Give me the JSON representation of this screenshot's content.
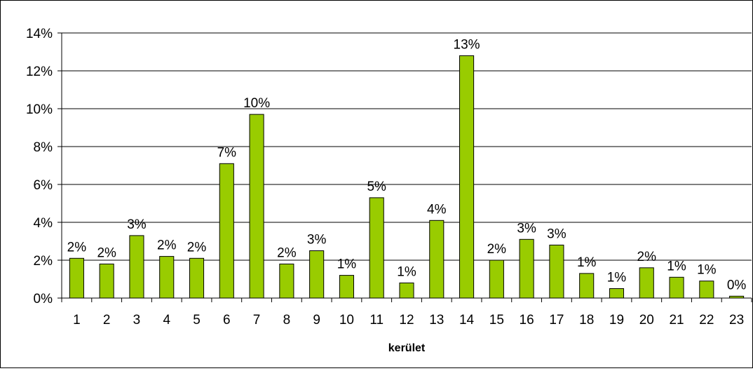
{
  "chart_data": {
    "type": "bar",
    "title": "",
    "xlabel": "kerület",
    "ylabel": "",
    "ylim": [
      0,
      14
    ],
    "y_tick_step": 2,
    "y_tick_format": "percent",
    "grid": "horizontal",
    "legend": "none",
    "categories": [
      "1",
      "2",
      "3",
      "4",
      "5",
      "6",
      "7",
      "8",
      "9",
      "10",
      "11",
      "12",
      "13",
      "14",
      "15",
      "16",
      "17",
      "18",
      "19",
      "20",
      "21",
      "22",
      "23"
    ],
    "values": [
      2.1,
      1.8,
      3.3,
      2.2,
      2.1,
      7.1,
      9.7,
      1.8,
      2.5,
      1.2,
      5.3,
      0.8,
      4.1,
      12.8,
      2.0,
      3.1,
      2.8,
      1.3,
      0.5,
      1.6,
      1.1,
      0.9,
      0.1
    ],
    "data_labels": [
      "2%",
      "2%",
      "3%",
      "2%",
      "2%",
      "7%",
      "10%",
      "2%",
      "3%",
      "1%",
      "5%",
      "1%",
      "4%",
      "13%",
      "2%",
      "3%",
      "3%",
      "1%",
      "1%",
      "2%",
      "1%",
      "1%",
      "0%"
    ],
    "bar_color": "#99cc00",
    "bar_border_color": "#000000",
    "gridline_color": "#000000"
  }
}
